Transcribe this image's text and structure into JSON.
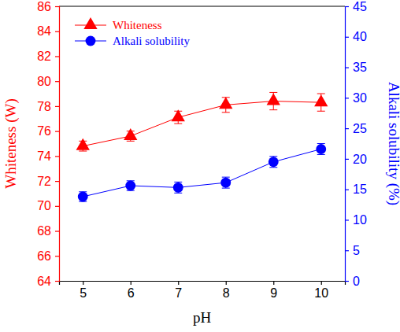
{
  "chart_data": {
    "type": "line",
    "x_label": "pH",
    "y_label": "Whiteness (W)",
    "y2_label": "Alkali solubility (%)",
    "x": [
      5,
      6,
      7,
      8,
      9,
      10
    ],
    "xlim": [
      4.5,
      10.5
    ],
    "xticks": [
      5,
      6,
      7,
      8,
      9,
      10
    ],
    "ylim": [
      64,
      86
    ],
    "yticks": [
      64,
      66,
      68,
      70,
      72,
      74,
      76,
      78,
      80,
      82,
      84,
      86
    ],
    "y2lim": [
      0,
      45
    ],
    "y2ticks": [
      0,
      5,
      10,
      15,
      20,
      25,
      30,
      35,
      40,
      45
    ],
    "legend": "upper left",
    "grid": false,
    "series": [
      {
        "name": "Whiteness",
        "color": "#ff0000",
        "marker": "triangle",
        "line_style": "solid",
        "values": [
          74.8,
          75.6,
          77.1,
          78.1,
          78.4,
          78.3
        ],
        "errors": [
          0.4,
          0.4,
          0.5,
          0.6,
          0.7,
          0.7
        ]
      },
      {
        "name": "Alkali solubility",
        "color": "#0000ff",
        "marker": "circle",
        "line_style": "solid",
        "axis": "y2",
        "values": [
          13.8,
          15.6,
          15.3,
          16.1,
          19.5,
          21.6
        ],
        "errors": [
          0.8,
          0.8,
          0.9,
          0.9,
          0.9,
          0.9
        ]
      }
    ]
  }
}
